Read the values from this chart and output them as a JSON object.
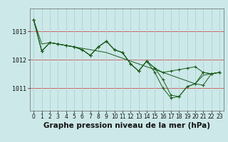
{
  "background_color": "#cce8e8",
  "plot_bg_color": "#cce8e8",
  "grid_color_major": "#cc0000",
  "grid_color_minor": "#aad4d4",
  "line_color": "#1a5c1a",
  "xlabel": "Graphe pression niveau de la mer (hPa)",
  "xlabel_fontsize": 7.5,
  "tick_fontsize": 6,
  "yticks": [
    1011,
    1012,
    1013
  ],
  "ylim": [
    1010.2,
    1013.8
  ],
  "xlim": [
    -0.5,
    23.5
  ],
  "figsize": [
    3.2,
    2.0
  ],
  "dpi": 100,
  "series": [
    {
      "x": [
        0,
        1,
        2,
        3,
        4,
        5,
        6,
        7,
        8,
        9,
        10,
        11,
        12,
        13,
        14,
        15,
        16,
        17,
        18,
        19,
        20,
        21,
        22,
        23
      ],
      "y": [
        1013.4,
        1012.55,
        1012.6,
        1012.55,
        1012.5,
        1012.45,
        1012.4,
        1012.35,
        1012.3,
        1012.25,
        1012.15,
        1012.05,
        1011.95,
        1011.85,
        1011.75,
        1011.65,
        1011.55,
        1011.45,
        1011.35,
        1011.25,
        1011.15,
        1011.45,
        1011.5,
        1011.55
      ],
      "marker": false
    },
    {
      "x": [
        0,
        1,
        2,
        3,
        4,
        5,
        6,
        7,
        8,
        9,
        10,
        11,
        12,
        13,
        14,
        15,
        16,
        17,
        18,
        19,
        20,
        21,
        22,
        23
      ],
      "y": [
        1013.4,
        1012.3,
        1012.6,
        1012.55,
        1012.5,
        1012.45,
        1012.35,
        1012.15,
        1012.45,
        1012.65,
        1012.35,
        1012.25,
        1011.85,
        1011.6,
        1011.95,
        1011.7,
        1011.55,
        1011.6,
        1011.65,
        1011.7,
        1011.75,
        1011.55,
        1011.5,
        1011.55
      ],
      "marker": true
    },
    {
      "x": [
        0,
        1,
        2,
        3,
        4,
        5,
        6,
        7,
        8,
        9,
        10,
        11,
        12,
        13,
        14,
        15,
        16,
        17,
        18,
        19,
        20,
        21,
        22,
        23
      ],
      "y": [
        1013.4,
        1012.3,
        1012.6,
        1012.55,
        1012.5,
        1012.45,
        1012.35,
        1012.15,
        1012.45,
        1012.65,
        1012.35,
        1012.25,
        1011.85,
        1011.6,
        1011.95,
        1011.7,
        1011.3,
        1010.75,
        1010.7,
        1011.05,
        1011.15,
        1011.55,
        1011.5,
        1011.55
      ],
      "marker": true
    },
    {
      "x": [
        0,
        1,
        2,
        3,
        4,
        5,
        6,
        7,
        8,
        9,
        10,
        11,
        12,
        13,
        14,
        15,
        16,
        17,
        18,
        19,
        20,
        21,
        22,
        23
      ],
      "y": [
        1013.4,
        1012.3,
        1012.6,
        1012.55,
        1012.5,
        1012.45,
        1012.35,
        1012.15,
        1012.45,
        1012.65,
        1012.35,
        1012.25,
        1011.85,
        1011.6,
        1011.95,
        1011.55,
        1011.0,
        1010.65,
        1010.7,
        1011.05,
        1011.15,
        1011.1,
        1011.5,
        1011.55
      ],
      "marker": true
    }
  ]
}
